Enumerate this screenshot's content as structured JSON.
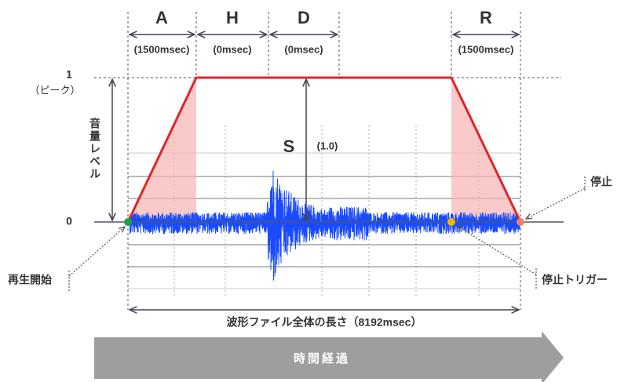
{
  "segments": [
    {
      "label": "A",
      "duration": "(1500msec)"
    },
    {
      "label": "H",
      "duration": "(0msec)"
    },
    {
      "label": "D",
      "duration": "(0msec)"
    },
    {
      "label": "R",
      "duration": "(1500msec)"
    }
  ],
  "level_axis": {
    "label": "音量レベル",
    "peak": "1",
    "peak_note": "（ピーク）",
    "zero": "0"
  },
  "sustain": {
    "label": "S",
    "value": "(1.0)"
  },
  "markers": {
    "start": "再生開始",
    "stop": "停止",
    "stop_trigger": "停止トリガー"
  },
  "length_label": "波形ファイル全体の長さ（8192msec）",
  "time_arrow": "時間経過"
}
